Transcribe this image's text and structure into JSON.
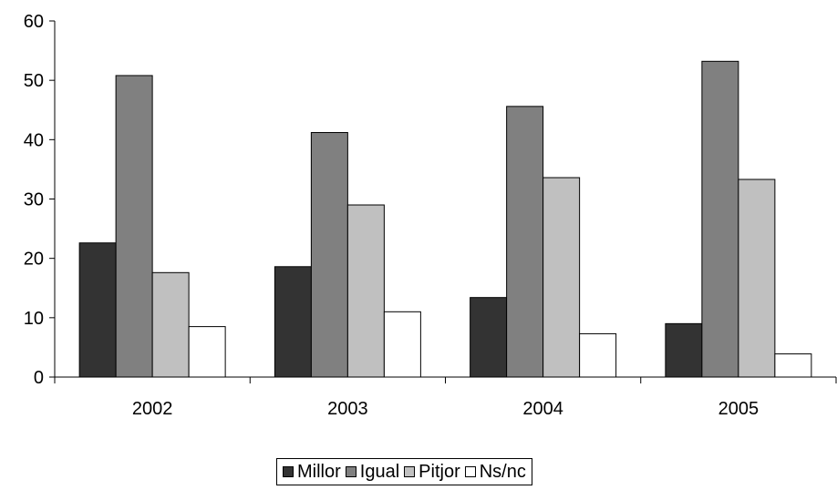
{
  "chart_data": {
    "type": "bar",
    "categories": [
      "2002",
      "2003",
      "2004",
      "2005"
    ],
    "series": [
      {
        "name": "Millor",
        "color": "#333333",
        "values": [
          22.6,
          18.6,
          13.4,
          9.0
        ]
      },
      {
        "name": "Igual",
        "color": "#808080",
        "values": [
          50.8,
          41.2,
          45.6,
          53.2
        ]
      },
      {
        "name": "Pitjor",
        "color": "#c0c0c0",
        "values": [
          17.6,
          29.0,
          33.6,
          33.3
        ]
      },
      {
        "name": "Ns/nc",
        "color": "#ffffff",
        "values": [
          8.5,
          11.0,
          7.3,
          3.9
        ]
      }
    ],
    "ylim": [
      0,
      60
    ],
    "yticks": [
      0,
      10,
      20,
      30,
      40,
      50,
      60
    ],
    "grid": false,
    "legend_position": "bottom-center"
  }
}
